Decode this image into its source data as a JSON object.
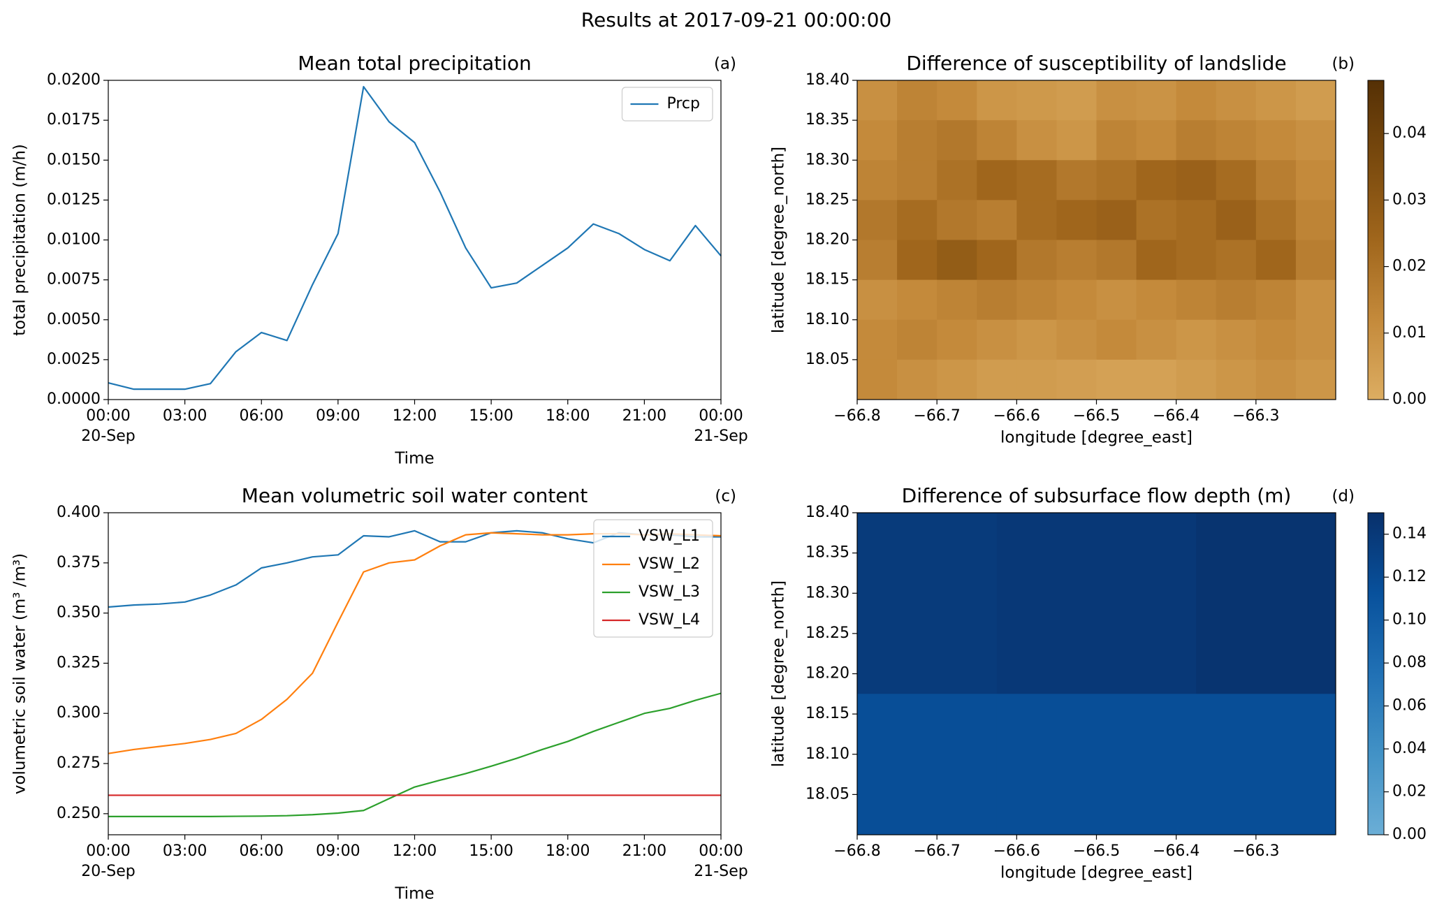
{
  "title": "Results at 2017-09-21 00:00:00",
  "chart_data": [
    {
      "type": "line",
      "panel": "(a)",
      "title": "Mean total precipitation",
      "xlabel": "Time",
      "ylabel": "total precipitation (m/h)",
      "x": [
        0,
        1,
        2,
        3,
        4,
        5,
        6,
        7,
        8,
        9,
        10,
        11,
        12,
        13,
        14,
        15,
        16,
        17,
        18,
        19,
        20,
        21,
        22,
        23,
        24
      ],
      "xlim": [
        0,
        24
      ],
      "xticks": [
        {
          "value": 0,
          "label": "00:00",
          "sublabel": "20-Sep"
        },
        {
          "value": 3,
          "label": "03:00"
        },
        {
          "value": 6,
          "label": "06:00"
        },
        {
          "value": 9,
          "label": "09:00"
        },
        {
          "value": 12,
          "label": "12:00"
        },
        {
          "value": 15,
          "label": "15:00"
        },
        {
          "value": 18,
          "label": "18:00"
        },
        {
          "value": 21,
          "label": "21:00"
        },
        {
          "value": 24,
          "label": "00:00",
          "sublabel": "21-Sep"
        }
      ],
      "ylim": [
        0,
        0.02
      ],
      "yticks": [
        {
          "value": 0,
          "label": "0.0000"
        },
        0.0025,
        {
          "value": 0.005,
          "label": "0.0050"
        },
        0.0075,
        {
          "value": 0.01,
          "label": "0.0100"
        },
        0.0125,
        {
          "value": 0.015,
          "label": "0.0150"
        },
        0.0175,
        {
          "value": 0.02,
          "label": "0.0200"
        }
      ],
      "legend": "upper right",
      "series": [
        {
          "name": "Prcp",
          "color": "#1f77b4",
          "values": [
            0.00105,
            0.00065,
            0.00065,
            0.00065,
            0.001,
            0.003,
            0.0042,
            0.0037,
            0.0072,
            0.0104,
            0.0196,
            0.0174,
            0.0161,
            0.013,
            0.0095,
            0.007,
            0.0073,
            0.0084,
            0.0095,
            0.011,
            0.0104,
            0.0094,
            0.0087,
            0.0109,
            0.009
          ]
        }
      ]
    },
    {
      "type": "heatmap",
      "panel": "(b)",
      "title": "Difference of susceptibility of landslide",
      "xlabel": "longitude [degree_east]",
      "ylabel": "latitude [degree_north]",
      "xlim": [
        -66.8,
        -66.2
      ],
      "ylim": [
        18.0,
        18.4
      ],
      "xticks": [
        {
          "value": -66.8,
          "label": "−66.8"
        },
        {
          "value": -66.7,
          "label": "−66.7"
        },
        {
          "value": -66.6,
          "label": "−66.6"
        },
        {
          "value": -66.5,
          "label": "−66.5"
        },
        {
          "value": -66.4,
          "label": "−66.4"
        },
        {
          "value": -66.3,
          "label": "−66.3"
        }
      ],
      "yticks": [
        18.05,
        {
          "value": 18.1,
          "label": "18.10"
        },
        18.15,
        {
          "value": 18.2,
          "label": "18.20"
        },
        18.25,
        {
          "value": 18.3,
          "label": "18.30"
        },
        18.35,
        {
          "value": 18.4,
          "label": "18.40"
        }
      ],
      "x_edges": [
        -66.8,
        -66.75,
        -66.7,
        -66.65,
        -66.6,
        -66.55,
        -66.5,
        -66.45,
        -66.4,
        -66.35,
        -66.3,
        -66.25,
        -66.2
      ],
      "y_edges": [
        18.4,
        18.35,
        18.3,
        18.25,
        18.2,
        18.15,
        18.1,
        18.05,
        18.0
      ],
      "z": [
        [
          0.01,
          0.014,
          0.012,
          0.008,
          0.007,
          0.006,
          0.01,
          0.009,
          0.012,
          0.01,
          0.008,
          0.006
        ],
        [
          0.012,
          0.016,
          0.018,
          0.014,
          0.01,
          0.008,
          0.014,
          0.012,
          0.016,
          0.014,
          0.012,
          0.01
        ],
        [
          0.014,
          0.016,
          0.02,
          0.024,
          0.022,
          0.018,
          0.02,
          0.024,
          0.026,
          0.022,
          0.016,
          0.012
        ],
        [
          0.018,
          0.022,
          0.018,
          0.016,
          0.022,
          0.024,
          0.026,
          0.02,
          0.022,
          0.026,
          0.02,
          0.014
        ],
        [
          0.016,
          0.024,
          0.028,
          0.024,
          0.018,
          0.016,
          0.018,
          0.024,
          0.022,
          0.02,
          0.024,
          0.016
        ],
        [
          0.01,
          0.012,
          0.014,
          0.016,
          0.014,
          0.012,
          0.01,
          0.012,
          0.014,
          0.016,
          0.014,
          0.01
        ],
        [
          0.012,
          0.014,
          0.012,
          0.01,
          0.008,
          0.01,
          0.012,
          0.01,
          0.008,
          0.01,
          0.012,
          0.01
        ],
        [
          0.012,
          0.01,
          0.008,
          0.006,
          0.006,
          0.005,
          0.004,
          0.004,
          0.006,
          0.008,
          0.01,
          0.008
        ]
      ],
      "colormap": [
        "#dcad62",
        "#c48a3b",
        "#a0661c",
        "#7a4a0e",
        "#553005"
      ],
      "clim": [
        0,
        0.048
      ],
      "cticks": [
        {
          "value": 0,
          "label": "0.00"
        },
        0.01,
        0.02,
        0.03,
        0.04
      ]
    },
    {
      "type": "line",
      "panel": "(c)",
      "title": "Mean volumetric soil water content",
      "xlabel": "Time",
      "ylabel": "volumetric soil water (m³ /m³)",
      "x": [
        0,
        1,
        2,
        3,
        4,
        5,
        6,
        7,
        8,
        9,
        10,
        11,
        12,
        13,
        14,
        15,
        16,
        17,
        18,
        19,
        20,
        21,
        22,
        23,
        24
      ],
      "xlim": [
        0,
        24
      ],
      "xticks": [
        {
          "value": 0,
          "label": "00:00",
          "sublabel": "20-Sep"
        },
        {
          "value": 3,
          "label": "03:00"
        },
        {
          "value": 6,
          "label": "06:00"
        },
        {
          "value": 9,
          "label": "09:00"
        },
        {
          "value": 12,
          "label": "12:00"
        },
        {
          "value": 15,
          "label": "15:00"
        },
        {
          "value": 18,
          "label": "18:00"
        },
        {
          "value": 21,
          "label": "21:00"
        },
        {
          "value": 24,
          "label": "00:00",
          "sublabel": "21-Sep"
        }
      ],
      "ylim": [
        0.2395,
        0.4
      ],
      "yticks": [
        {
          "value": 0.25,
          "label": "0.250"
        },
        0.275,
        {
          "value": 0.3,
          "label": "0.300"
        },
        0.325,
        {
          "value": 0.35,
          "label": "0.350"
        },
        0.375,
        {
          "value": 0.4,
          "label": "0.400"
        }
      ],
      "legend": "upper right",
      "series": [
        {
          "name": "VSW_L1",
          "color": "#1f77b4",
          "values": [
            0.353,
            0.354,
            0.3545,
            0.3555,
            0.359,
            0.364,
            0.3725,
            0.375,
            0.378,
            0.379,
            0.3885,
            0.388,
            0.391,
            0.3855,
            0.3855,
            0.39,
            0.391,
            0.39,
            0.387,
            0.385,
            0.39,
            0.389,
            0.389,
            0.388,
            0.388
          ]
        },
        {
          "name": "VSW_L2",
          "color": "#ff7f0e",
          "values": [
            0.28,
            0.282,
            0.2835,
            0.285,
            0.287,
            0.29,
            0.297,
            0.307,
            0.32,
            0.3455,
            0.3705,
            0.375,
            0.3765,
            0.3835,
            0.389,
            0.39,
            0.3895,
            0.389,
            0.389,
            0.3895,
            0.3895,
            0.389,
            0.3895,
            0.389,
            0.3885
          ]
        },
        {
          "name": "VSW_L3",
          "color": "#2ca02c",
          "values": [
            0.2486,
            0.2486,
            0.2486,
            0.2486,
            0.2486,
            0.2487,
            0.2488,
            0.249,
            0.2495,
            0.2503,
            0.2516,
            0.2575,
            0.2633,
            0.2667,
            0.27,
            0.2737,
            0.2776,
            0.282,
            0.286,
            0.291,
            0.2955,
            0.3,
            0.3025,
            0.3065,
            0.31
          ]
        },
        {
          "name": "VSW_L4",
          "color": "#d62728",
          "values": [
            0.2592,
            0.2592,
            0.2592,
            0.2592,
            0.2592,
            0.2592,
            0.2592,
            0.2592,
            0.2592,
            0.2592,
            0.2592,
            0.2592,
            0.2592,
            0.2592,
            0.2592,
            0.2592,
            0.2592,
            0.2592,
            0.2592,
            0.2592,
            0.2592,
            0.2592,
            0.2592,
            0.2592,
            0.2592
          ]
        }
      ]
    },
    {
      "type": "heatmap",
      "panel": "(d)",
      "title": "Difference of subsurface flow depth (m)",
      "xlabel": "longitude [degree_east]",
      "ylabel": "latitude [degree_north]",
      "xlim": [
        -66.8,
        -66.2
      ],
      "ylim": [
        18.0,
        18.4
      ],
      "xticks": [
        {
          "value": -66.8,
          "label": "−66.8"
        },
        {
          "value": -66.7,
          "label": "−66.7"
        },
        {
          "value": -66.6,
          "label": "−66.6"
        },
        {
          "value": -66.5,
          "label": "−66.5"
        },
        {
          "value": -66.4,
          "label": "−66.4"
        },
        {
          "value": -66.3,
          "label": "−66.3"
        }
      ],
      "yticks": [
        18.05,
        {
          "value": 18.1,
          "label": "18.10"
        },
        18.15,
        {
          "value": 18.2,
          "label": "18.20"
        },
        18.25,
        {
          "value": 18.3,
          "label": "18.30"
        },
        18.35,
        {
          "value": 18.4,
          "label": "18.40"
        }
      ],
      "x_edges": [
        -66.8,
        -66.625,
        -66.375,
        -66.2
      ],
      "y_edges": [
        18.4,
        18.175,
        18.0
      ],
      "z": [
        [
          0.138,
          0.141,
          0.146
        ],
        [
          0.116,
          0.116,
          0.116
        ]
      ],
      "colormap": [
        "#6baed6",
        "#4292c6",
        "#2171b5",
        "#08519c",
        "#08306b"
      ],
      "clim": [
        0,
        0.15
      ],
      "cticks": [
        {
          "value": 0,
          "label": "0.00"
        },
        0.02,
        0.04,
        0.06,
        0.08,
        {
          "value": 0.1,
          "label": "0.10"
        },
        0.12,
        0.14
      ]
    }
  ]
}
